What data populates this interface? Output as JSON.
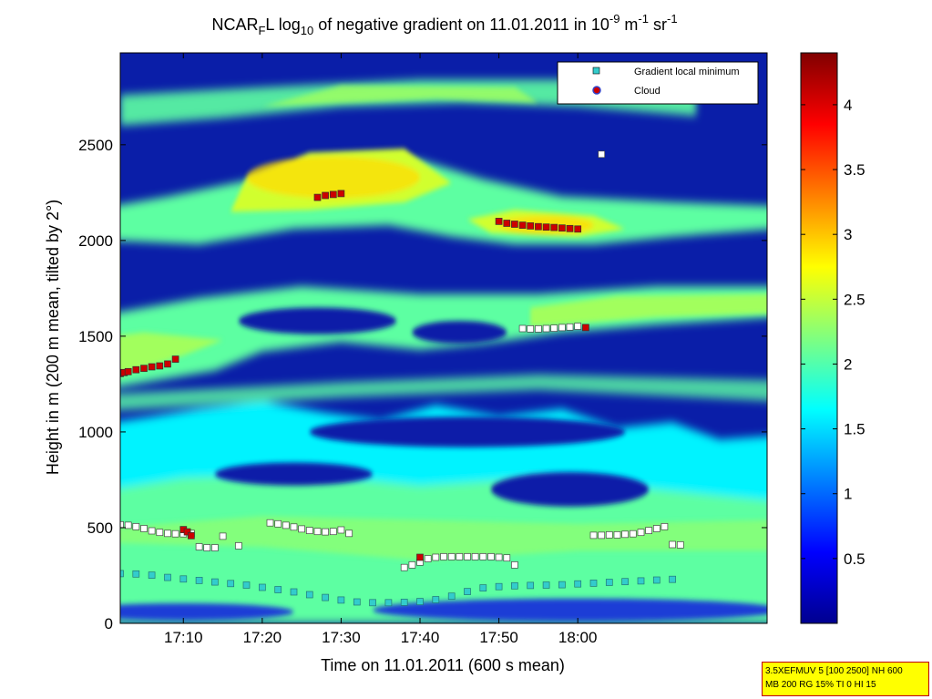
{
  "chart_data": {
    "type": "heatmap",
    "title": {
      "prefix": "NCAR",
      "sub1": "F",
      "mid1": "L log",
      "sub2": "10",
      "mid2": " of negative gradient on 11.01.2011 in 10",
      "sup1": "-9",
      "mid3": " m",
      "sup2": "-1",
      "mid4": " sr",
      "sup3": "-1"
    },
    "xlabel": "Time on 11.01.2011 (600 s mean)",
    "ylabel": "Height in m (200 m mean, tilted by 2°)",
    "xlim_minutes": [
      1022,
      1104
    ],
    "ylim": [
      0,
      2980
    ],
    "x_ticks": [
      {
        "label": "17:10",
        "minute": 1030
      },
      {
        "label": "17:20",
        "minute": 1040
      },
      {
        "label": "17:30",
        "minute": 1050
      },
      {
        "label": "17:40",
        "minute": 1060
      },
      {
        "label": "17:50",
        "minute": 1070
      },
      {
        "label": "18:00",
        "minute": 1080
      }
    ],
    "y_ticks": [
      {
        "label": "0",
        "value": 0
      },
      {
        "label": "500",
        "value": 500
      },
      {
        "label": "1000",
        "value": 1000
      },
      {
        "label": "1500",
        "value": 1500
      },
      {
        "label": "2000",
        "value": 2000
      },
      {
        "label": "2500",
        "value": 2500
      }
    ],
    "colorbar": {
      "range": [
        0,
        4.4
      ],
      "ticks": [
        {
          "label": "0.5",
          "value": 0.5
        },
        {
          "label": "1",
          "value": 1
        },
        {
          "label": "1.5",
          "value": 1.5
        },
        {
          "label": "2",
          "value": 2
        },
        {
          "label": "2.5",
          "value": 2.5
        },
        {
          "label": "3",
          "value": 3
        },
        {
          "label": "3.5",
          "value": 3.5
        },
        {
          "label": "4",
          "value": 4
        }
      ]
    },
    "legend": {
      "placement": "top-right",
      "entries": [
        {
          "label": "Gradient local minimum",
          "color": "#33cccc",
          "marker": "square"
        },
        {
          "label": "Cloud",
          "color": "#cc0000",
          "marker": "circle"
        }
      ]
    },
    "layers": [
      {
        "name": "base",
        "value": 1.6
      },
      {
        "name": "layer",
        "value": 2.05
      },
      {
        "name": "layer",
        "value": 2.35
      },
      {
        "name": "layer",
        "value": 2.55
      },
      {
        "name": "layer",
        "value": 2.9
      }
    ],
    "series": [
      {
        "name": "Gradient local minimum",
        "points": [
          [
            1022,
            260
          ],
          [
            1024,
            258
          ],
          [
            1026,
            252
          ],
          [
            1028,
            240
          ],
          [
            1030,
            232
          ],
          [
            1032,
            224
          ],
          [
            1034,
            216
          ],
          [
            1036,
            208
          ],
          [
            1038,
            200
          ],
          [
            1040,
            188
          ],
          [
            1042,
            176
          ],
          [
            1044,
            164
          ],
          [
            1046,
            150
          ],
          [
            1048,
            135
          ],
          [
            1050,
            122
          ],
          [
            1052,
            112
          ],
          [
            1054,
            108
          ],
          [
            1056,
            108
          ],
          [
            1058,
            110
          ],
          [
            1060,
            114
          ],
          [
            1062,
            124
          ],
          [
            1064,
            142
          ],
          [
            1066,
            166
          ],
          [
            1068,
            185
          ],
          [
            1070,
            192
          ],
          [
            1072,
            196
          ],
          [
            1074,
            198
          ],
          [
            1076,
            200
          ],
          [
            1078,
            202
          ],
          [
            1080,
            206
          ],
          [
            1082,
            210
          ],
          [
            1084,
            214
          ],
          [
            1086,
            218
          ],
          [
            1088,
            222
          ],
          [
            1090,
            226
          ],
          [
            1092,
            230
          ]
        ]
      },
      {
        "name": "secondary minimum",
        "points": [
          [
            1022,
            515
          ],
          [
            1023,
            512
          ],
          [
            1024,
            505
          ],
          [
            1025,
            495
          ],
          [
            1026,
            483
          ],
          [
            1027,
            475
          ],
          [
            1028,
            470
          ],
          [
            1029,
            468
          ],
          [
            1030,
            468
          ],
          [
            1031,
            470
          ],
          [
            1032,
            400
          ],
          [
            1033,
            395
          ],
          [
            1034,
            395
          ],
          [
            1035,
            455
          ],
          [
            1037,
            405
          ],
          [
            1041,
            525
          ],
          [
            1042,
            520
          ],
          [
            1043,
            512
          ],
          [
            1044,
            503
          ],
          [
            1045,
            493
          ],
          [
            1046,
            485
          ],
          [
            1047,
            480
          ],
          [
            1048,
            478
          ],
          [
            1049,
            480
          ],
          [
            1050,
            488
          ],
          [
            1051,
            470
          ],
          [
            1058,
            292
          ],
          [
            1059,
            305
          ],
          [
            1060,
            320
          ],
          [
            1061,
            338
          ],
          [
            1062,
            345
          ],
          [
            1063,
            348
          ],
          [
            1064,
            348
          ],
          [
            1065,
            348
          ],
          [
            1066,
            348
          ],
          [
            1067,
            348
          ],
          [
            1068,
            348
          ],
          [
            1069,
            348
          ],
          [
            1070,
            345
          ],
          [
            1071,
            342
          ],
          [
            1072,
            305
          ],
          [
            1073,
            1540
          ],
          [
            1074,
            1538
          ],
          [
            1075,
            1538
          ],
          [
            1076,
            1540
          ],
          [
            1077,
            1542
          ],
          [
            1078,
            1545
          ],
          [
            1079,
            1548
          ],
          [
            1080,
            1552
          ],
          [
            1083,
            2450
          ],
          [
            1082,
            460
          ],
          [
            1083,
            460
          ],
          [
            1084,
            462
          ],
          [
            1085,
            462
          ],
          [
            1086,
            465
          ],
          [
            1087,
            468
          ],
          [
            1088,
            475
          ],
          [
            1089,
            485
          ],
          [
            1090,
            495
          ],
          [
            1091,
            505
          ],
          [
            1092,
            412
          ],
          [
            1093,
            410
          ]
        ]
      },
      {
        "name": "Cloud",
        "points": [
          [
            1022,
            1305
          ],
          [
            1022.5,
            1310
          ],
          [
            1023,
            1315
          ],
          [
            1024,
            1325
          ],
          [
            1025,
            1332
          ],
          [
            1026,
            1340
          ],
          [
            1027,
            1345
          ],
          [
            1028,
            1355
          ],
          [
            1029,
            1380
          ],
          [
            1047,
            2225
          ],
          [
            1048,
            2235
          ],
          [
            1049,
            2240
          ],
          [
            1050,
            2245
          ],
          [
            1070,
            2100
          ],
          [
            1071,
            2090
          ],
          [
            1072,
            2085
          ],
          [
            1073,
            2080
          ],
          [
            1074,
            2076
          ],
          [
            1075,
            2072
          ],
          [
            1076,
            2070
          ],
          [
            1077,
            2068
          ],
          [
            1078,
            2065
          ],
          [
            1079,
            2062
          ],
          [
            1080,
            2060
          ],
          [
            1081,
            1545
          ],
          [
            1030,
            490
          ],
          [
            1030.5,
            478
          ],
          [
            1031,
            458
          ],
          [
            1060,
            345
          ]
        ]
      }
    ]
  },
  "info_box": {
    "line1": "3.5XEFMUV 5 [100 2500] NH 600",
    "line2": "MB 200 RG 15% TI 0 HI 15"
  }
}
